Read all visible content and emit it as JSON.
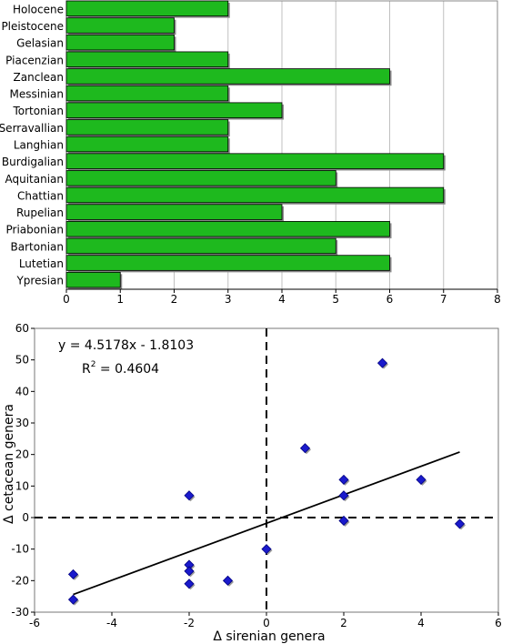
{
  "chart_data": [
    {
      "type": "bar",
      "orientation": "horizontal",
      "categories": [
        "Holocene",
        "Pleistocene",
        "Gelasian",
        "Piacenzian",
        "Zanclean",
        "Messinian",
        "Tortonian",
        "Serravallian",
        "Langhian",
        "Burdigalian",
        "Aquitanian",
        "Chattian",
        "Rupelian",
        "Priabonian",
        "Bartonian",
        "Lutetian",
        "Ypresian"
      ],
      "values": [
        3,
        2,
        2,
        3,
        6,
        3,
        4,
        3,
        3,
        7,
        5,
        7,
        4,
        6,
        5,
        6,
        1
      ],
      "xlim": [
        0,
        8
      ],
      "xticks": [
        "0",
        "1",
        "2",
        "3",
        "4",
        "5",
        "6",
        "7",
        "8"
      ],
      "grid": "vertical",
      "colors": {
        "bar": "#1eb91e",
        "shadow": "#8a8a8a",
        "grid": "#c0c0c0"
      }
    },
    {
      "type": "scatter",
      "xlabel": "Δ sirenian genera",
      "ylabel": "Δ cetacean genera",
      "xlim": [
        -6,
        6
      ],
      "ylim": [
        -30,
        60
      ],
      "xticks": [
        "-6",
        "-4",
        "-2",
        "0",
        "2",
        "4",
        "6"
      ],
      "yticks": [
        "-30",
        "-20",
        "-10",
        "0",
        "10",
        "20",
        "30",
        "40",
        "50",
        "60"
      ],
      "points": [
        {
          "x": 3,
          "y": 49
        },
        {
          "x": 1,
          "y": 22
        },
        {
          "x": 2,
          "y": 12
        },
        {
          "x": 4,
          "y": 12
        },
        {
          "x": -2,
          "y": 7
        },
        {
          "x": 2,
          "y": 7
        },
        {
          "x": 2,
          "y": -1
        },
        {
          "x": 5,
          "y": -2
        },
        {
          "x": 0,
          "y": -10
        },
        {
          "x": -5,
          "y": -18
        },
        {
          "x": -2,
          "y": -15
        },
        {
          "x": -2,
          "y": -17
        },
        {
          "x": -1,
          "y": -20
        },
        {
          "x": -2,
          "y": -21
        },
        {
          "x": -5,
          "y": -26
        }
      ],
      "trendline": {
        "slope": 4.5178,
        "intercept": -1.8103,
        "x_range": [
          -5,
          5
        ]
      },
      "equation": "y = 4.5178x - 1.8103",
      "r2_label": "R",
      "r2_exp": "2",
      "r2_value": " = 0.4604",
      "colors": {
        "point": "#1a1acc",
        "point_edge": "#000080",
        "line": "#000000"
      }
    }
  ]
}
